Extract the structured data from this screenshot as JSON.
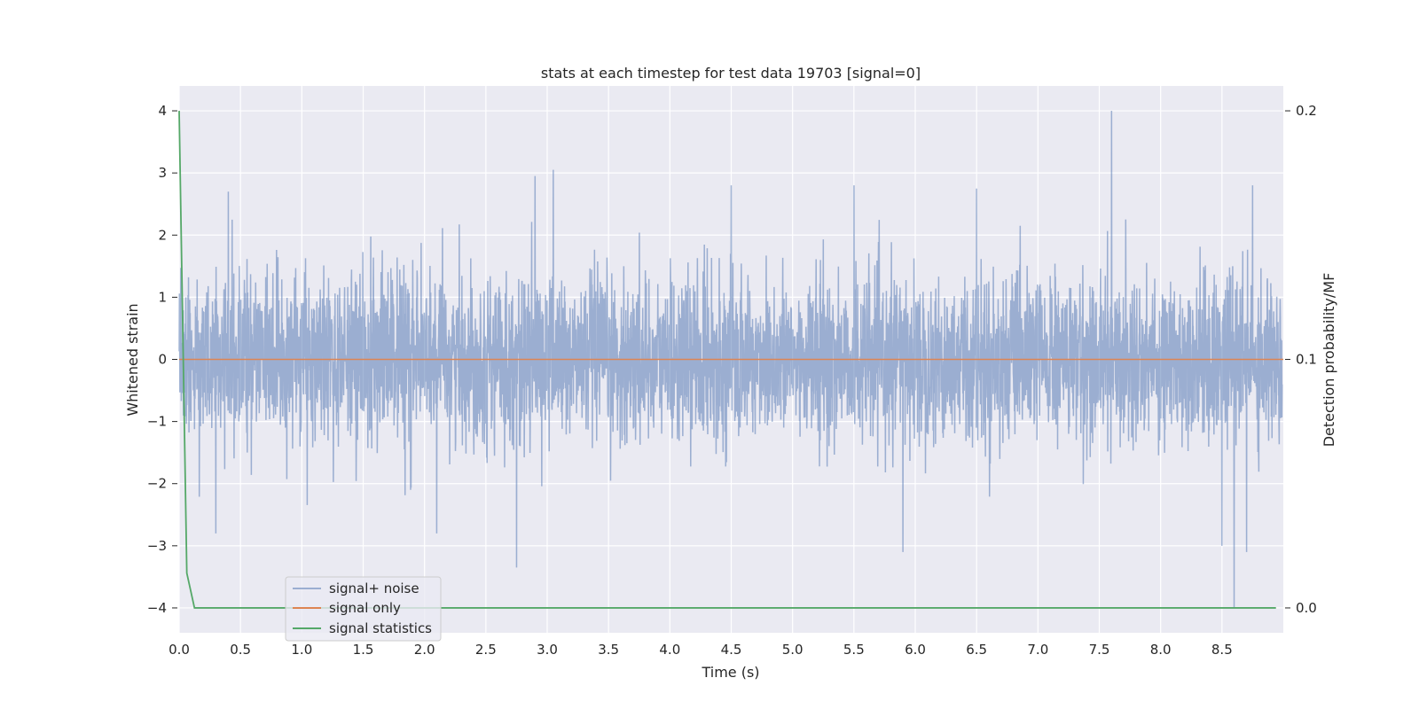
{
  "chart_data": {
    "type": "line",
    "title": "stats at each timestep for test data 19703 [signal=0]",
    "xlabel": "Time (s)",
    "ylabel": "Whitened strain",
    "y2label": "Detection probability/MF",
    "xlim": [
      0.0,
      9.0
    ],
    "ylim": [
      -4.4,
      4.4
    ],
    "y2lim": [
      -0.01,
      0.21
    ],
    "x_ticks": [
      "0.0",
      "0.5",
      "1.0",
      "1.5",
      "2.0",
      "2.5",
      "3.0",
      "3.5",
      "4.0",
      "4.5",
      "5.0",
      "5.5",
      "6.0",
      "6.5",
      "7.0",
      "7.5",
      "8.0",
      "8.5"
    ],
    "y_ticks": [
      "4",
      "3",
      "2",
      "1",
      "0",
      "−1",
      "−2",
      "−3",
      "−4"
    ],
    "y2_ticks": [
      "0.2",
      "0.1",
      "0.0"
    ],
    "grid": true,
    "legend_position": "lower-left",
    "series": [
      {
        "name": "signal+ noise",
        "color": "#4c72b0",
        "axis": "left",
        "description_sample_rate_hz": 2048,
        "noise_std": 0.65,
        "peaks": [
          {
            "x": 0.4,
            "y": 2.7
          },
          {
            "x": 2.9,
            "y": 2.95
          },
          {
            "x": 3.05,
            "y": 3.05
          },
          {
            "x": 4.5,
            "y": 2.8
          },
          {
            "x": 5.5,
            "y": 2.8
          },
          {
            "x": 6.5,
            "y": 2.75
          },
          {
            "x": 7.6,
            "y": 4.0
          },
          {
            "x": 8.75,
            "y": 2.8
          },
          {
            "x": 2.75,
            "y": -3.35
          },
          {
            "x": 5.9,
            "y": -3.1
          },
          {
            "x": 8.6,
            "y": -4.0
          },
          {
            "x": 8.5,
            "y": -3.0
          },
          {
            "x": 8.7,
            "y": -3.1
          },
          {
            "x": 0.3,
            "y": -2.8
          },
          {
            "x": 2.1,
            "y": -2.8
          }
        ]
      },
      {
        "name": "signal only",
        "color": "#dd8452",
        "axis": "left",
        "x": [
          0.0,
          9.0
        ],
        "y": [
          0.0,
          0.0
        ]
      },
      {
        "name": "signal statistics",
        "color": "#55a868",
        "axis": "right",
        "x": [
          0.0,
          0.0625,
          0.125,
          0.25,
          0.5,
          1.0,
          2.0,
          3.0,
          4.0,
          5.0,
          6.0,
          7.0,
          8.0,
          8.94
        ],
        "y": [
          0.2,
          0.014,
          0.0,
          0.0,
          0.0,
          0.0,
          0.0,
          0.0,
          0.0,
          0.0,
          0.0,
          0.0,
          0.0,
          0.0
        ]
      }
    ]
  }
}
